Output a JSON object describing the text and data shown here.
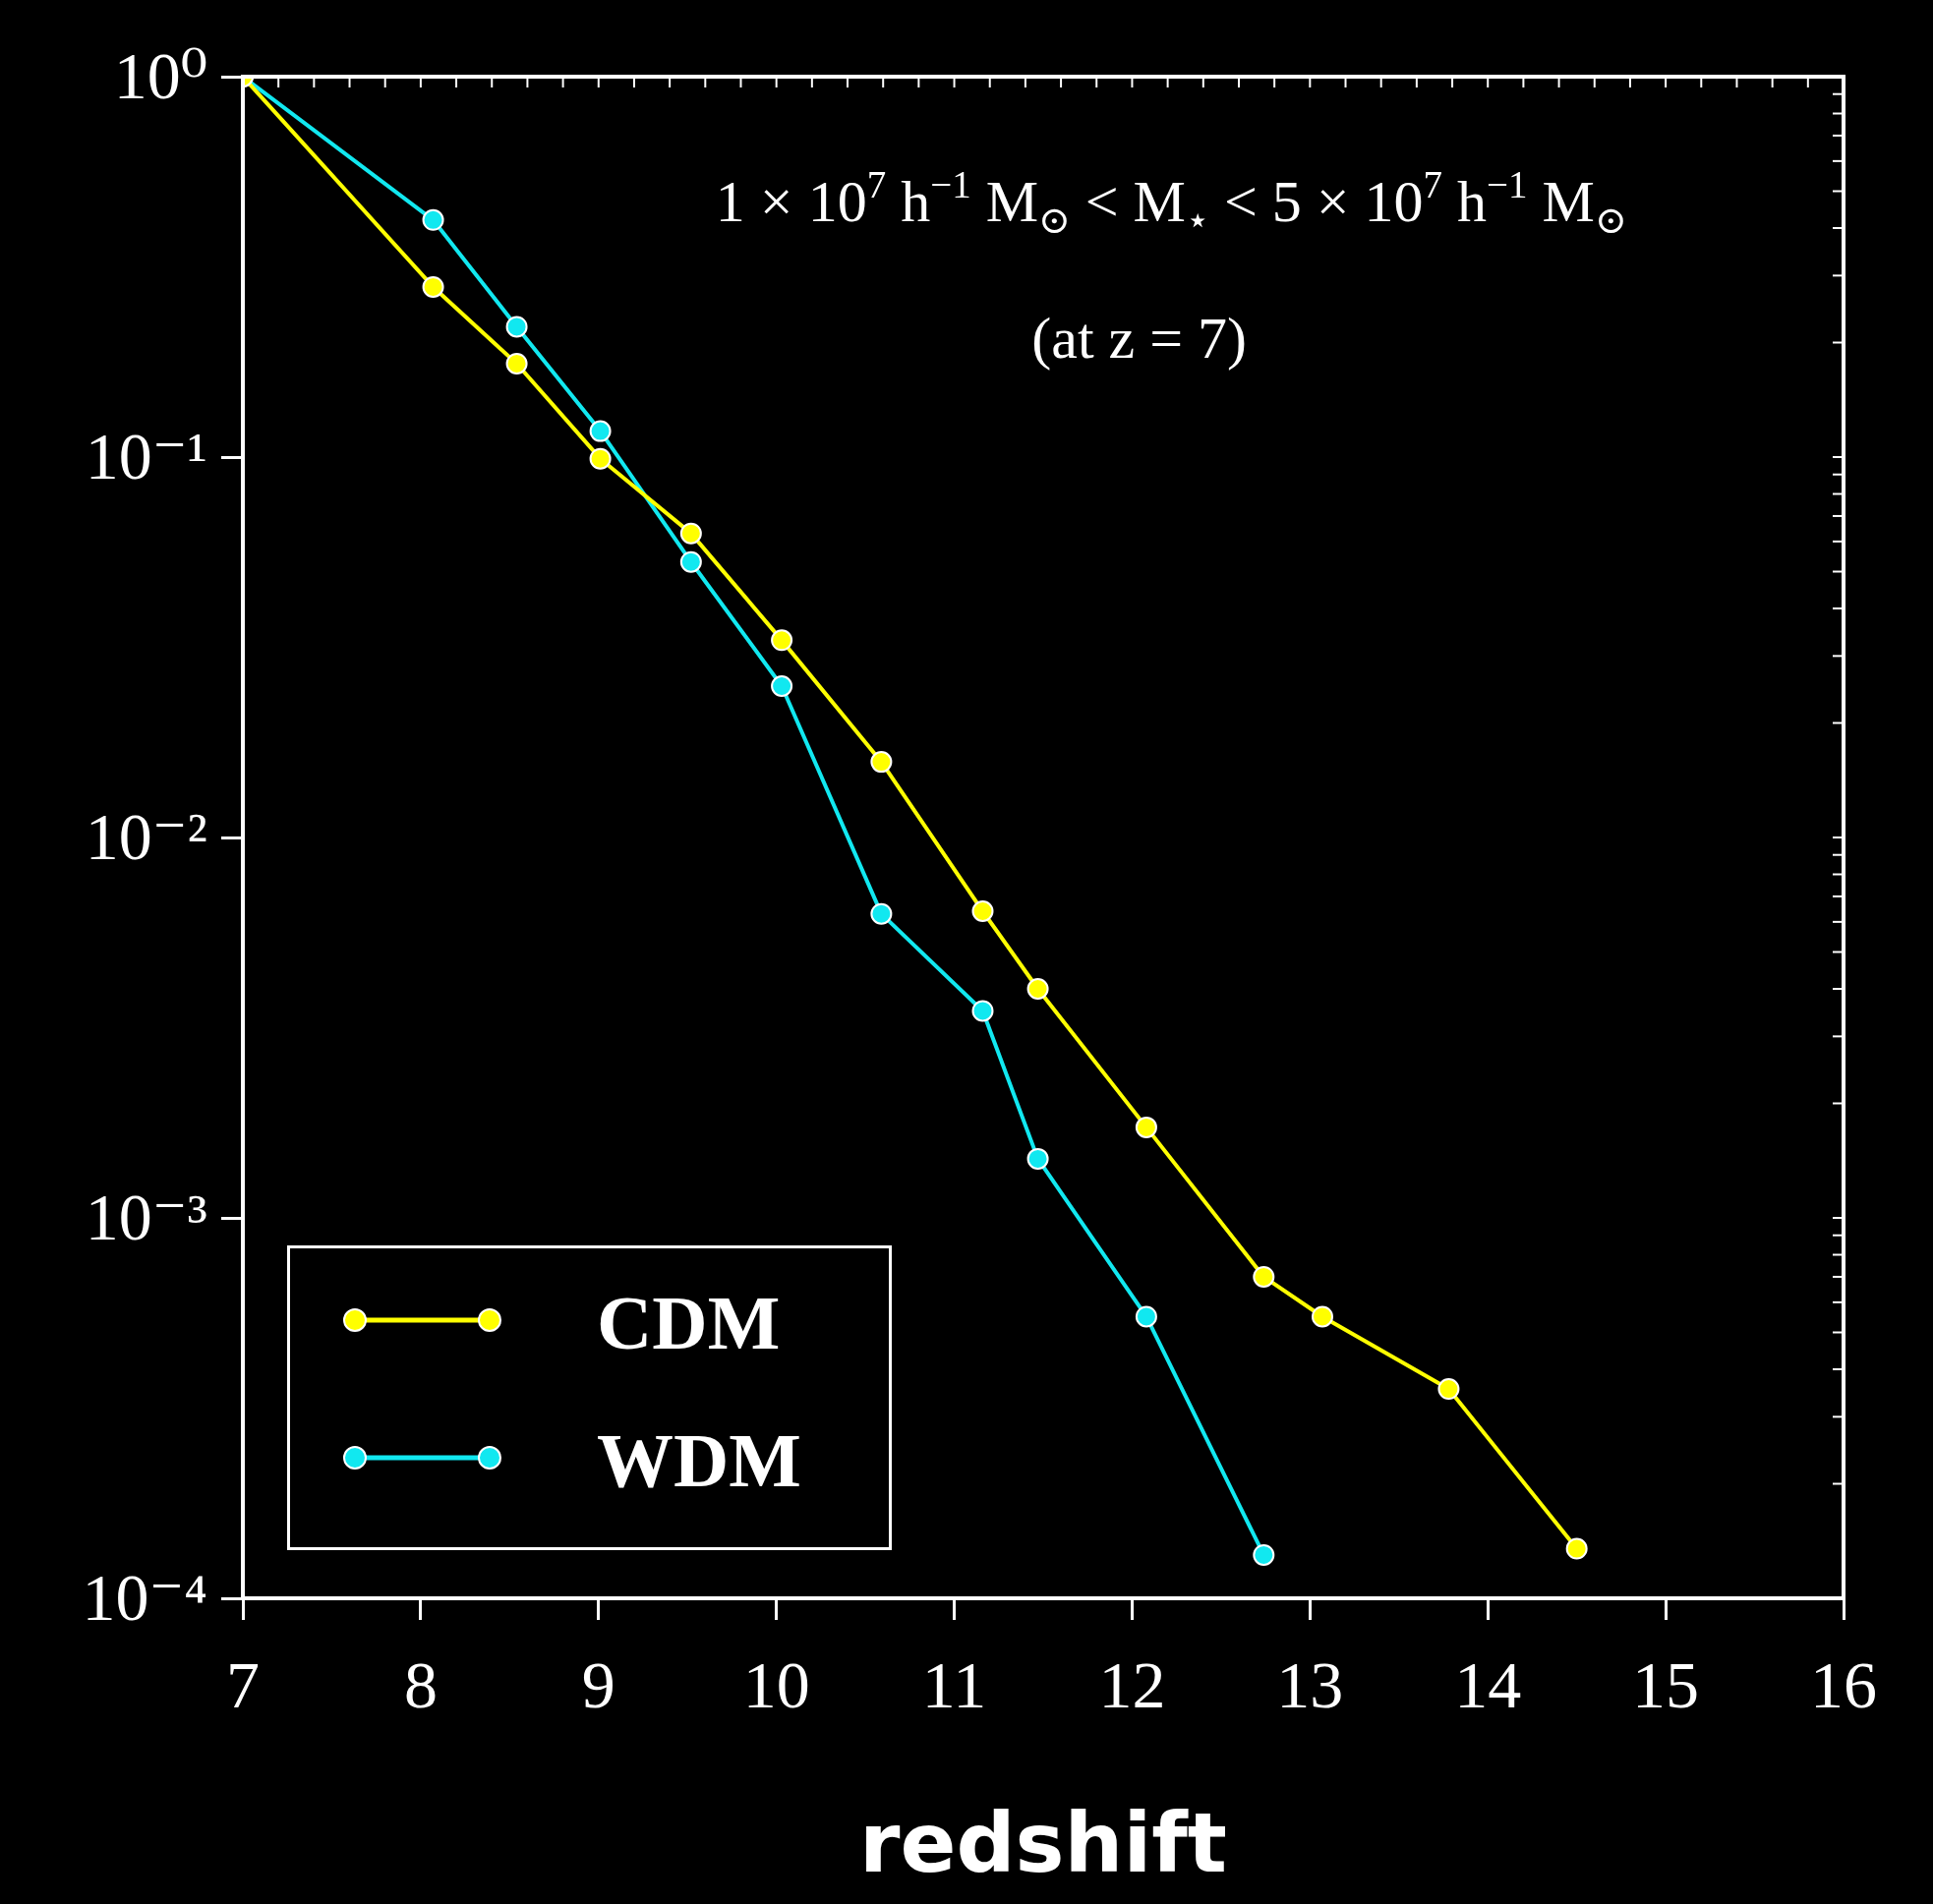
{
  "chart_data": {
    "type": "line",
    "xlabel": "redshift",
    "annotations": [
      "1 × 10$^{7}$ h$^{−1}$ M$_{⊙}$ < M$_{⋆}$ < 5 × 10$^{7}$ h$^{−1}$ M$_{⊙}$",
      "(at z = 7)"
    ],
    "series": [
      {
        "name": "CDM",
        "color": "#ffff00",
        "x": [
          7,
          8.07,
          8.54,
          9.01,
          9.52,
          10.03,
          10.59,
          11.16,
          11.47,
          12.08,
          12.74,
          13.07,
          13.78,
          14.5
        ],
        "values": [
          1,
          0.28,
          0.176,
          0.099,
          0.063,
          0.033,
          0.0158,
          0.0064,
          0.004,
          0.00173,
          0.0007,
          0.00055,
          0.000355,
          0.000135
        ]
      },
      {
        "name": "WDM",
        "color": "#11e8f0",
        "x": [
          7,
          8.07,
          8.54,
          9.01,
          9.52,
          10.03,
          10.59,
          11.16,
          11.47,
          12.08,
          12.74
        ],
        "values": [
          1,
          0.42,
          0.22,
          0.117,
          0.053,
          0.025,
          0.0063,
          0.0035,
          0.00143,
          0.00055,
          0.00013
        ]
      }
    ],
    "xlim": [
      7,
      16
    ],
    "xticks": [
      7,
      8,
      9,
      10,
      11,
      12,
      13,
      14,
      15,
      16
    ],
    "ylim": [
      0.0001,
      1
    ],
    "yticks": [
      {
        "value": 1,
        "label": "10⁰"
      },
      {
        "value": 0.1,
        "label": "10⁻¹"
      },
      {
        "value": 0.01,
        "label": "10⁻²"
      },
      {
        "value": 0.001,
        "label": "10⁻³"
      },
      {
        "value": 0.0001,
        "label": "10⁻⁴"
      }
    ],
    "log": "y",
    "legend": "bottom left",
    "marker": "circle",
    "line_style": "solid"
  }
}
